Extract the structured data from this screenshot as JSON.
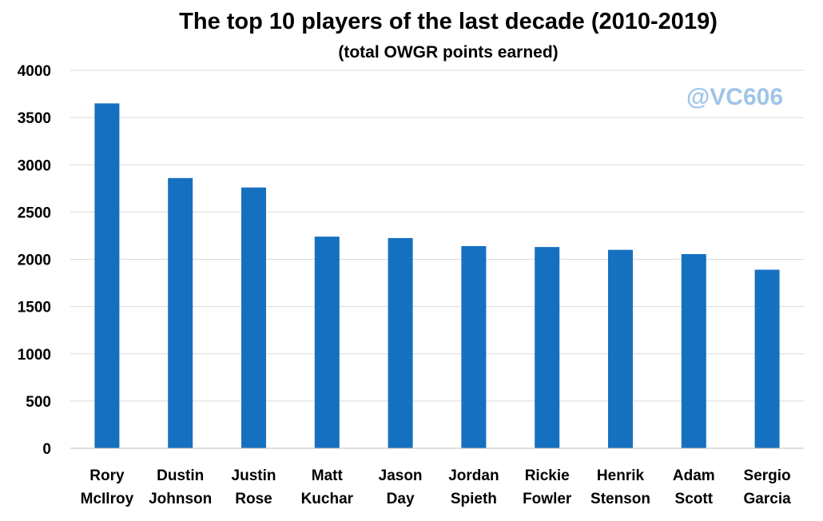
{
  "chart_data": {
    "type": "bar",
    "title": "The top 10 players of the last decade (2010-2019)",
    "subtitle": "(total OWGR points earned)",
    "watermark": "@VC606",
    "categories": [
      [
        "Rory",
        "McIlroy"
      ],
      [
        "Dustin",
        "Johnson"
      ],
      [
        "Justin",
        "Rose"
      ],
      [
        "Matt",
        "Kuchar"
      ],
      [
        "Jason",
        "Day"
      ],
      [
        "Jordan",
        "Spieth"
      ],
      [
        "Rickie",
        "Fowler"
      ],
      [
        "Henrik",
        "Stenson"
      ],
      [
        "Adam",
        "Scott"
      ],
      [
        "Sergio",
        "Garcia"
      ]
    ],
    "values": [
      3650,
      2860,
      2760,
      2240,
      2225,
      2140,
      2130,
      2100,
      2055,
      1890
    ],
    "ylim": [
      0,
      4000
    ],
    "yticks": [
      0,
      500,
      1000,
      1500,
      2000,
      2500,
      3000,
      3500,
      4000
    ],
    "xlabel": "",
    "ylabel": "",
    "grid": true,
    "legend": "none",
    "colors": {
      "bar": "#1570c0",
      "grid": "#d9d9d9",
      "axis": "#bfbfbf",
      "watermark": "#9fc5e8",
      "text": "#000000"
    }
  }
}
